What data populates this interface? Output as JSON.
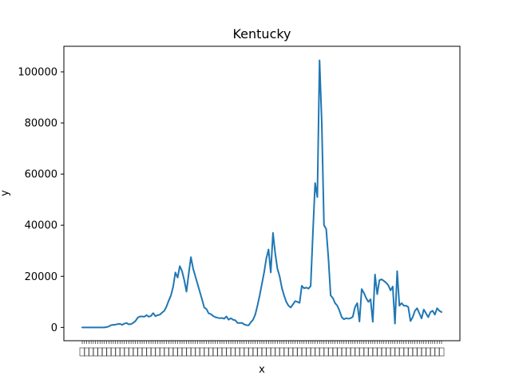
{
  "chart_data": {
    "type": "line",
    "title": "Kentucky",
    "xlabel": "x",
    "ylabel": "y",
    "ylim": [
      -5200,
      110000
    ],
    "grid": false,
    "yticks": [
      0,
      20000,
      40000,
      60000,
      80000,
      100000
    ],
    "ytick_labels": [
      "0",
      "20000",
      "40000",
      "60000",
      "80000",
      "100000"
    ],
    "series": [
      {
        "color": "#1f77b4",
        "values": [
          0,
          0,
          0,
          0,
          0,
          0,
          0,
          0,
          0,
          0,
          0,
          150,
          400,
          900,
          1000,
          1100,
          1300,
          1400,
          1000,
          1500,
          1700,
          1200,
          1300,
          1800,
          2500,
          3800,
          4300,
          4300,
          4200,
          4800,
          4200,
          4500,
          5600,
          4400,
          4800,
          5000,
          5800,
          6500,
          8200,
          10500,
          12500,
          16000,
          21500,
          19500,
          24000,
          22000,
          18500,
          14000,
          21000,
          27500,
          23000,
          20000,
          17000,
          14000,
          11000,
          7800,
          7200,
          5500,
          5200,
          4500,
          4000,
          3800,
          3600,
          3700,
          3400,
          4300,
          3000,
          3600,
          3000,
          2800,
          1800,
          1700,
          1800,
          1200,
          900,
          800,
          2000,
          3000,
          5000,
          8500,
          12500,
          17000,
          21500,
          27000,
          30500,
          21500,
          37000,
          29000,
          23000,
          20000,
          15500,
          12500,
          10000,
          8500,
          7800,
          9000,
          10300,
          10000,
          9600,
          16300,
          15300,
          15600,
          15200,
          16200,
          37000,
          56500,
          51000,
          104500,
          80000,
          40000,
          38500,
          27000,
          12500,
          11500,
          9500,
          8500,
          6500,
          4000,
          3200,
          3600,
          3400,
          3600,
          4200,
          8000,
          9500,
          2300,
          15000,
          13500,
          11500,
          10000,
          11000,
          2200,
          20700,
          13000,
          18500,
          18800,
          18200,
          17500,
          16500,
          14500,
          16000,
          1500,
          22000,
          8500,
          9500,
          8500,
          8500,
          8000,
          2500,
          4000,
          6500,
          7500,
          5500,
          3500,
          7000,
          5500,
          4000,
          6000,
          6500,
          5000,
          7500,
          6500,
          6000
        ]
      }
    ]
  }
}
